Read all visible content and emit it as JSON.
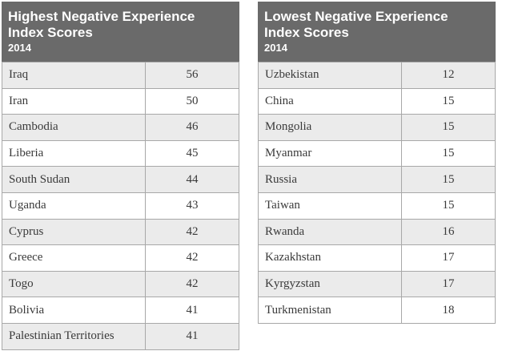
{
  "left_table": {
    "title_line1": "Highest Negative Experience",
    "title_line2": "Index Scores",
    "year": "2014",
    "rows": [
      {
        "country": "Iraq",
        "score": "56"
      },
      {
        "country": "Iran",
        "score": "50"
      },
      {
        "country": "Cambodia",
        "score": "46"
      },
      {
        "country": "Liberia",
        "score": "45"
      },
      {
        "country": "South Sudan",
        "score": "44"
      },
      {
        "country": "Uganda",
        "score": "43"
      },
      {
        "country": "Cyprus",
        "score": "42"
      },
      {
        "country": "Greece",
        "score": "42"
      },
      {
        "country": "Togo",
        "score": "42"
      },
      {
        "country": "Bolivia",
        "score": "41"
      },
      {
        "country": "Palestinian Territories",
        "score": "41"
      }
    ]
  },
  "right_table": {
    "title_line1": "Lowest Negative Experience",
    "title_line2": "Index Scores",
    "year": "2014",
    "rows": [
      {
        "country": "Uzbekistan",
        "score": "12"
      },
      {
        "country": "China",
        "score": "15"
      },
      {
        "country": "Mongolia",
        "score": "15"
      },
      {
        "country": "Myanmar",
        "score": "15"
      },
      {
        "country": "Russia",
        "score": "15"
      },
      {
        "country": "Taiwan",
        "score": "15"
      },
      {
        "country": "Rwanda",
        "score": "16"
      },
      {
        "country": "Kazakhstan",
        "score": "17"
      },
      {
        "country": "Kyrgyzstan",
        "score": "17"
      },
      {
        "country": "Turkmenistan",
        "score": "18"
      }
    ]
  },
  "colors": {
    "header_bg": "#6a6a6a",
    "header_text": "#ffffff",
    "stripe": "#ebebeb",
    "border": "#a8a8a8"
  }
}
